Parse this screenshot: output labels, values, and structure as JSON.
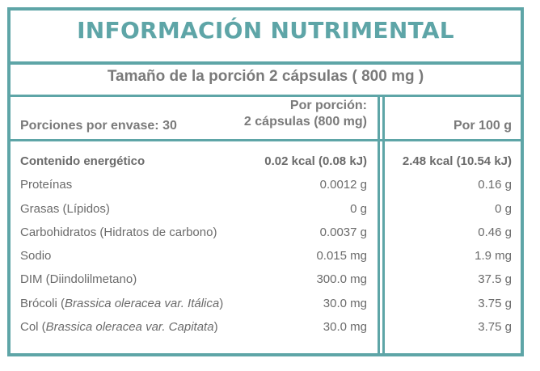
{
  "title": "INFORMACIÓN NUTRIMENTAL",
  "serving_size": "Tamaño de la porción 2 cápsulas ( 800 mg )",
  "header": {
    "servings_per_container": "Porciones por envase: 30",
    "per_serving_line1": "Por porción:",
    "per_serving_line2": "2 cápsulas (800 mg)",
    "per_100g": "Por 100 g"
  },
  "rows": [
    {
      "name": "Contenido energético",
      "per_serving": "0.02 kcal (0.08 kJ)",
      "per_100g": "2.48 kcal (10.54 kJ)"
    },
    {
      "name": "Proteínas",
      "per_serving": "0.0012 g",
      "per_100g": "0.16 g"
    },
    {
      "name": "Grasas (Lípidos)",
      "per_serving": "0 g",
      "per_100g": "0 g"
    },
    {
      "name": "Carbohidratos (Hidratos de carbono)",
      "per_serving": "0.0037 g",
      "per_100g": "0.46 g"
    },
    {
      "name": "Sodio",
      "per_serving": "0.015 mg",
      "per_100g": "1.9 mg"
    },
    {
      "name": "DIM (Diindolilmetano)",
      "per_serving": "300.0 mg",
      "per_100g": "37.5 g"
    },
    {
      "name_prefix": "Brócoli (",
      "name_italic": "Brassica oleracea var. Itálica",
      "name_suffix": ")",
      "per_serving": "30.0 mg",
      "per_100g": "3.75 g"
    },
    {
      "name_prefix": "Col (",
      "name_italic": "Brassica oleracea var. Capitata",
      "name_suffix": ")",
      "per_serving": "30.0 mg",
      "per_100g": "3.75 g"
    }
  ],
  "colors": {
    "border": "#5ea5a7",
    "title": "#5ea5a7",
    "text": "#6e6e6e"
  }
}
